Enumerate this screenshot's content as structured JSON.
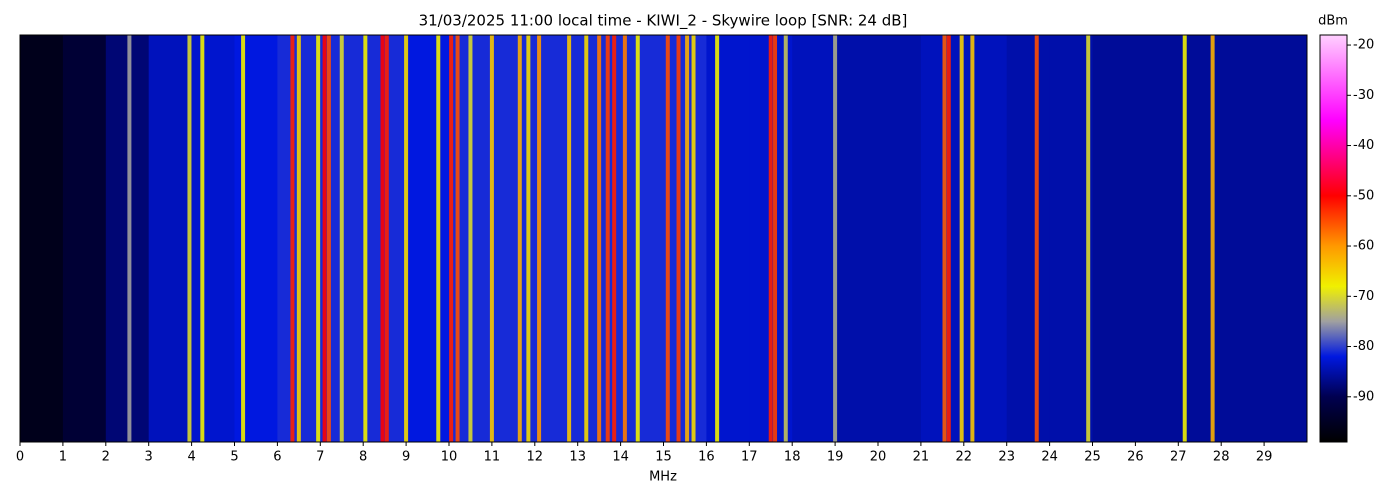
{
  "chart_data": {
    "type": "waterfall",
    "title": "31/03/2025 11:00 local time - KIWI_2 - Skywire loop [SNR: 24 dB]",
    "x_label": "MHz",
    "colorbar_label": "dBm",
    "xlim": [
      0,
      30
    ],
    "xticks": [
      0,
      1,
      2,
      3,
      4,
      5,
      6,
      7,
      8,
      9,
      10,
      11,
      12,
      13,
      14,
      15,
      16,
      17,
      18,
      19,
      20,
      21,
      22,
      23,
      24,
      25,
      26,
      27,
      28,
      29
    ],
    "clim": [
      -99,
      -18
    ],
    "cticks": [
      -90,
      -80,
      -70,
      -60,
      -50,
      -40,
      -30,
      -20
    ],
    "colorscale": [
      {
        "value": -99,
        "color": "#000000"
      },
      {
        "value": -90,
        "color": "#000050"
      },
      {
        "value": -82,
        "color": "#0018e0"
      },
      {
        "value": -75,
        "color": "#a0a0a0"
      },
      {
        "value": -68,
        "color": "#f0f000"
      },
      {
        "value": -60,
        "color": "#ff9900"
      },
      {
        "value": -50,
        "color": "#ff0000"
      },
      {
        "value": -35,
        "color": "#ff00ff"
      },
      {
        "value": -18,
        "color": "#ffd0ff"
      }
    ],
    "noise_floor": {
      "bins": [
        0,
        1,
        2,
        3,
        4,
        5,
        6,
        7,
        8,
        9,
        10,
        11,
        12,
        13,
        14,
        15,
        16,
        17,
        18,
        19,
        20,
        21,
        22,
        23,
        24,
        25,
        26,
        27,
        28,
        29,
        30
      ],
      "values": [
        -96,
        -93,
        -88,
        -84,
        -83,
        -82,
        -81,
        -81,
        -81,
        -82,
        -81,
        -81,
        -81,
        -81,
        -81,
        -81,
        -83,
        -83,
        -84,
        -85,
        -85,
        -84,
        -84,
        -85,
        -85,
        -86,
        -86,
        -86,
        -86,
        -86
      ]
    },
    "signals": {
      "freq": [
        2.55,
        3.95,
        4.25,
        5.2,
        6.35,
        6.5,
        6.95,
        7.1,
        7.2,
        7.5,
        8.05,
        8.45,
        8.55,
        9.0,
        9.75,
        10.05,
        10.2,
        10.5,
        11.0,
        11.65,
        11.85,
        12.1,
        12.8,
        13.2,
        13.5,
        13.7,
        13.85,
        14.1,
        14.4,
        15.1,
        15.35,
        15.55,
        15.7,
        16.25,
        17.5,
        17.6,
        17.85,
        19.0,
        21.55,
        21.65,
        21.95,
        22.2,
        23.7,
        24.9,
        27.15,
        27.8
      ],
      "level": [
        -75,
        -70,
        -68,
        -68,
        -52,
        -65,
        -68,
        -50,
        -55,
        -70,
        -68,
        -50,
        -52,
        -66,
        -68,
        -52,
        -55,
        -70,
        -64,
        -62,
        -66,
        -60,
        -64,
        -66,
        -58,
        -54,
        -52,
        -58,
        -68,
        -55,
        -54,
        -62,
        -66,
        -68,
        -52,
        -54,
        -72,
        -74,
        -56,
        -52,
        -65,
        -64,
        -55,
        -70,
        -68,
        -62
      ]
    }
  }
}
